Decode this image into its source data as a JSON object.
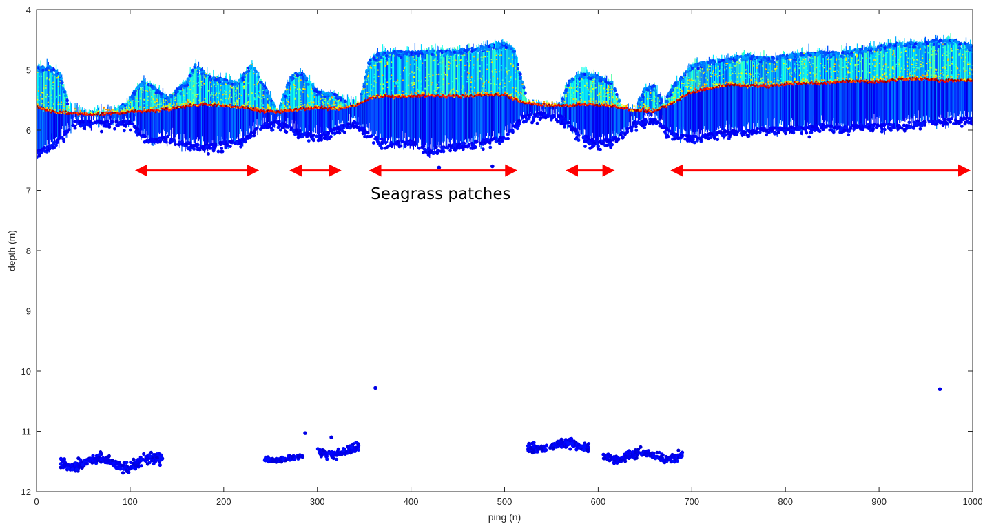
{
  "chart_data": {
    "type": "scatter",
    "title": "",
    "xlabel": "ping (n)",
    "ylabel": "depth (m)",
    "xlim": [
      0,
      1000
    ],
    "ylim": [
      4,
      12
    ],
    "y_reversed": true,
    "grid": false,
    "xticks": [
      0,
      100,
      200,
      300,
      400,
      500,
      600,
      700,
      800,
      900,
      1000
    ],
    "yticks": [
      4,
      5,
      6,
      7,
      8,
      9,
      10,
      11,
      12
    ],
    "colormap": "jet",
    "seabed_profile": {
      "x": [
        0,
        20,
        40,
        60,
        80,
        100,
        120,
        140,
        160,
        180,
        200,
        220,
        240,
        260,
        280,
        300,
        320,
        340,
        360,
        380,
        400,
        420,
        440,
        460,
        480,
        500,
        520,
        540,
        560,
        580,
        600,
        620,
        640,
        660,
        680,
        700,
        720,
        740,
        760,
        780,
        800,
        820,
        840,
        860,
        880,
        900,
        920,
        940,
        960,
        980,
        1000
      ],
      "depth": [
        5.62,
        5.7,
        5.72,
        5.74,
        5.72,
        5.7,
        5.68,
        5.66,
        5.6,
        5.57,
        5.6,
        5.62,
        5.68,
        5.7,
        5.66,
        5.63,
        5.65,
        5.6,
        5.45,
        5.44,
        5.44,
        5.42,
        5.44,
        5.43,
        5.42,
        5.41,
        5.55,
        5.58,
        5.6,
        5.58,
        5.58,
        5.62,
        5.66,
        5.68,
        5.55,
        5.37,
        5.3,
        5.25,
        5.26,
        5.27,
        5.24,
        5.22,
        5.22,
        5.2,
        5.18,
        5.2,
        5.16,
        5.15,
        5.17,
        5.18,
        5.18
      ]
    },
    "canopy_top": {
      "x": [
        0,
        15,
        25,
        35,
        50,
        80,
        95,
        105,
        115,
        140,
        160,
        170,
        185,
        200,
        215,
        230,
        245,
        258,
        268,
        275,
        285,
        300,
        320,
        330,
        345,
        355,
        365,
        380,
        400,
        420,
        440,
        460,
        480,
        500,
        510,
        525,
        545,
        560,
        570,
        585,
        600,
        615,
        625,
        640,
        650,
        660,
        670,
        680,
        690,
        700,
        720,
        740,
        760,
        780,
        800,
        820,
        840,
        860,
        880,
        900,
        920,
        940,
        960,
        980,
        1000
      ],
      "depth": [
        4.95,
        4.95,
        5.05,
        5.6,
        5.65,
        5.65,
        5.55,
        5.35,
        5.15,
        5.45,
        5.2,
        4.9,
        5.1,
        5.15,
        5.2,
        4.9,
        5.3,
        5.7,
        5.25,
        5.05,
        5.05,
        5.35,
        5.4,
        5.5,
        5.55,
        4.85,
        4.72,
        4.68,
        4.7,
        4.68,
        4.68,
        4.65,
        4.6,
        4.55,
        4.65,
        5.55,
        5.6,
        5.55,
        5.15,
        5.05,
        5.1,
        5.2,
        5.6,
        5.65,
        5.3,
        5.25,
        5.55,
        5.25,
        5.1,
        4.9,
        4.85,
        4.8,
        4.75,
        4.8,
        4.75,
        4.72,
        4.7,
        4.7,
        4.65,
        4.6,
        4.55,
        4.55,
        4.5,
        4.5,
        4.6
      ]
    },
    "canopy_bottom": {
      "x": [
        0,
        20,
        40,
        60,
        80,
        100,
        120,
        140,
        160,
        180,
        200,
        220,
        240,
        260,
        280,
        300,
        320,
        340,
        360,
        380,
        400,
        420,
        440,
        460,
        480,
        500,
        520,
        540,
        560,
        580,
        600,
        620,
        640,
        660,
        680,
        700,
        720,
        740,
        760,
        780,
        800,
        820,
        840,
        860,
        880,
        900,
        920,
        940,
        960,
        980,
        1000
      ],
      "depth": [
        6.35,
        6.2,
        5.85,
        5.85,
        5.85,
        5.85,
        6.15,
        6.1,
        6.2,
        6.25,
        6.2,
        6.15,
        5.9,
        5.85,
        6.0,
        6.1,
        5.95,
        5.85,
        6.1,
        6.2,
        6.15,
        6.3,
        6.25,
        6.2,
        6.15,
        6.1,
        5.75,
        5.7,
        5.75,
        6.05,
        6.2,
        6.1,
        5.85,
        5.8,
        6.05,
        6.1,
        6.05,
        6.0,
        6.0,
        5.95,
        5.95,
        5.95,
        5.9,
        5.95,
        5.9,
        5.9,
        5.9,
        5.85,
        5.85,
        5.8,
        5.8
      ]
    },
    "second_echo_clusters": [
      {
        "x_start": 25,
        "x_end": 135,
        "depth_center": 11.52,
        "depth_spread": 0.12
      },
      {
        "x_start": 242,
        "x_end": 285,
        "depth_center": 11.45,
        "depth_spread": 0.05
      },
      {
        "x_start": 300,
        "x_end": 345,
        "depth_center": 11.33,
        "depth_spread": 0.1
      },
      {
        "x_start": 525,
        "x_end": 590,
        "depth_center": 11.25,
        "depth_spread": 0.1
      },
      {
        "x_start": 605,
        "x_end": 690,
        "depth_center": 11.4,
        "depth_spread": 0.1
      }
    ],
    "outliers": [
      {
        "x": 362,
        "depth": 10.28
      },
      {
        "x": 965,
        "depth": 10.3
      },
      {
        "x": 287,
        "depth": 11.03
      },
      {
        "x": 315,
        "depth": 11.1
      },
      {
        "x": 430,
        "depth": 6.62
      },
      {
        "x": 487,
        "depth": 6.6
      },
      {
        "x": 3,
        "depth": 6.42
      }
    ],
    "patches": [
      {
        "x_start": 103,
        "x_end": 240
      },
      {
        "x_start": 268,
        "x_end": 328
      },
      {
        "x_start": 353,
        "x_end": 516
      },
      {
        "x_start": 563,
        "x_end": 620
      },
      {
        "x_start": 675,
        "x_end": 1000
      }
    ],
    "patch_arrow_depth": 6.67,
    "patch_arrow_color": "#ff0000",
    "annotation": {
      "text": "Seagrass patches",
      "x": 357,
      "depth": 7.05
    }
  }
}
